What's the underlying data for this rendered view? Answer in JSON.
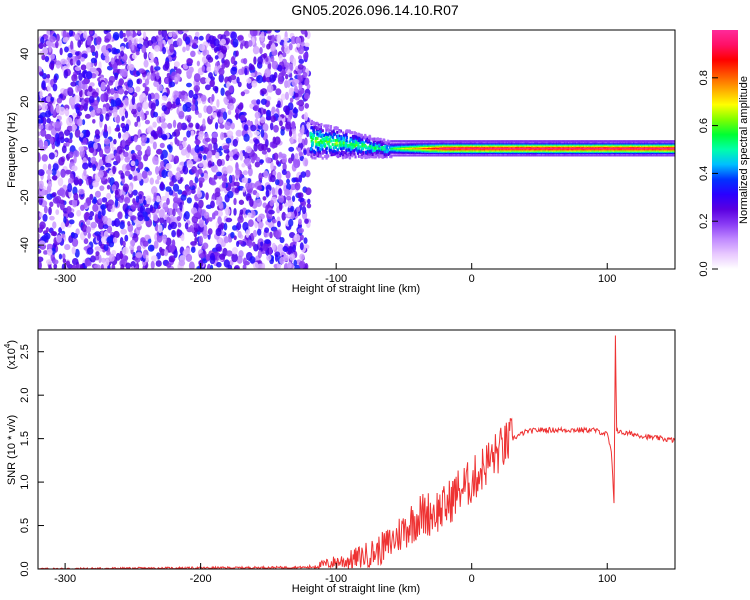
{
  "title": "GN05.2026.096.14.10.R07",
  "colors": {
    "snr_line": "#ee3333",
    "scatter": "#7a2cf0",
    "colorbar_stops": [
      "#ffffff",
      "#e8c8ff",
      "#c089ff",
      "#8a3cf5",
      "#5a00e0",
      "#2a00ff",
      "#0033ff",
      "#00bfff",
      "#00ffaa",
      "#00ff33",
      "#7fff00",
      "#ffff00",
      "#ffaa00",
      "#ff5500",
      "#ff0000",
      "#ff1066",
      "#ff2a9a"
    ]
  },
  "chart_data": [
    {
      "type": "heatmap",
      "title": "",
      "xlabel": "Height of straight line (km)",
      "ylabel": "Frequency (Hz)",
      "xlim": [
        -320,
        150
      ],
      "ylim": [
        -50,
        50
      ],
      "xticks": [
        -300,
        -200,
        -100,
        0,
        100
      ],
      "yticks": [
        -40,
        -20,
        0,
        20,
        40
      ],
      "colorbar": {
        "label": "Normalized spectral amplitude",
        "range": [
          0,
          1
        ],
        "ticks": [
          "0.0",
          "0.2",
          "0.4",
          "0.6",
          "0.8"
        ]
      },
      "regions": [
        {
          "x": [
            -320,
            -120
          ],
          "description_value": "broadband noise 0.1-0.35"
        },
        {
          "x": [
            -120,
            -60
          ],
          "freq_center": 4,
          "freq_halfwidth": 8
        },
        {
          "x": [
            -60,
            150
          ],
          "freq_center": 0.5,
          "freq_halfwidth": 3,
          "peak_amplitude": 0.95
        }
      ]
    },
    {
      "type": "line",
      "title": "",
      "xlabel": "Height of straight line (km)",
      "ylabel": "SNR (10 * v/v)",
      "multiplier_label": "(x10",
      "multiplier_exp": "4",
      "multiplier_close": ")",
      "xlim": [
        -320,
        150
      ],
      "ylim": [
        0,
        2.75
      ],
      "xticks": [
        -300,
        -200,
        -100,
        0,
        100
      ],
      "yticks": [
        "0.0",
        "0.5",
        "1.0",
        "1.5",
        "2.0",
        "2.5"
      ],
      "series": [
        {
          "name": "",
          "x": [
            -320,
            -120,
            -110,
            -100,
            -90,
            -80,
            -70,
            -60,
            -50,
            -40,
            -30,
            -20,
            -10,
            0,
            10,
            20,
            30,
            40,
            50,
            60,
            70,
            80,
            90,
            100,
            103,
            105,
            106,
            107,
            110,
            120,
            130,
            140,
            150
          ],
          "y": [
            0.0,
            0.02,
            0.05,
            0.08,
            0.1,
            0.15,
            0.2,
            0.3,
            0.45,
            0.6,
            0.65,
            0.7,
            0.9,
            1.0,
            1.2,
            1.35,
            1.5,
            1.58,
            1.6,
            1.6,
            1.6,
            1.6,
            1.6,
            1.55,
            1.35,
            0.75,
            2.7,
            1.6,
            1.57,
            1.55,
            1.52,
            1.5,
            1.48
          ]
        }
      ]
    }
  ]
}
